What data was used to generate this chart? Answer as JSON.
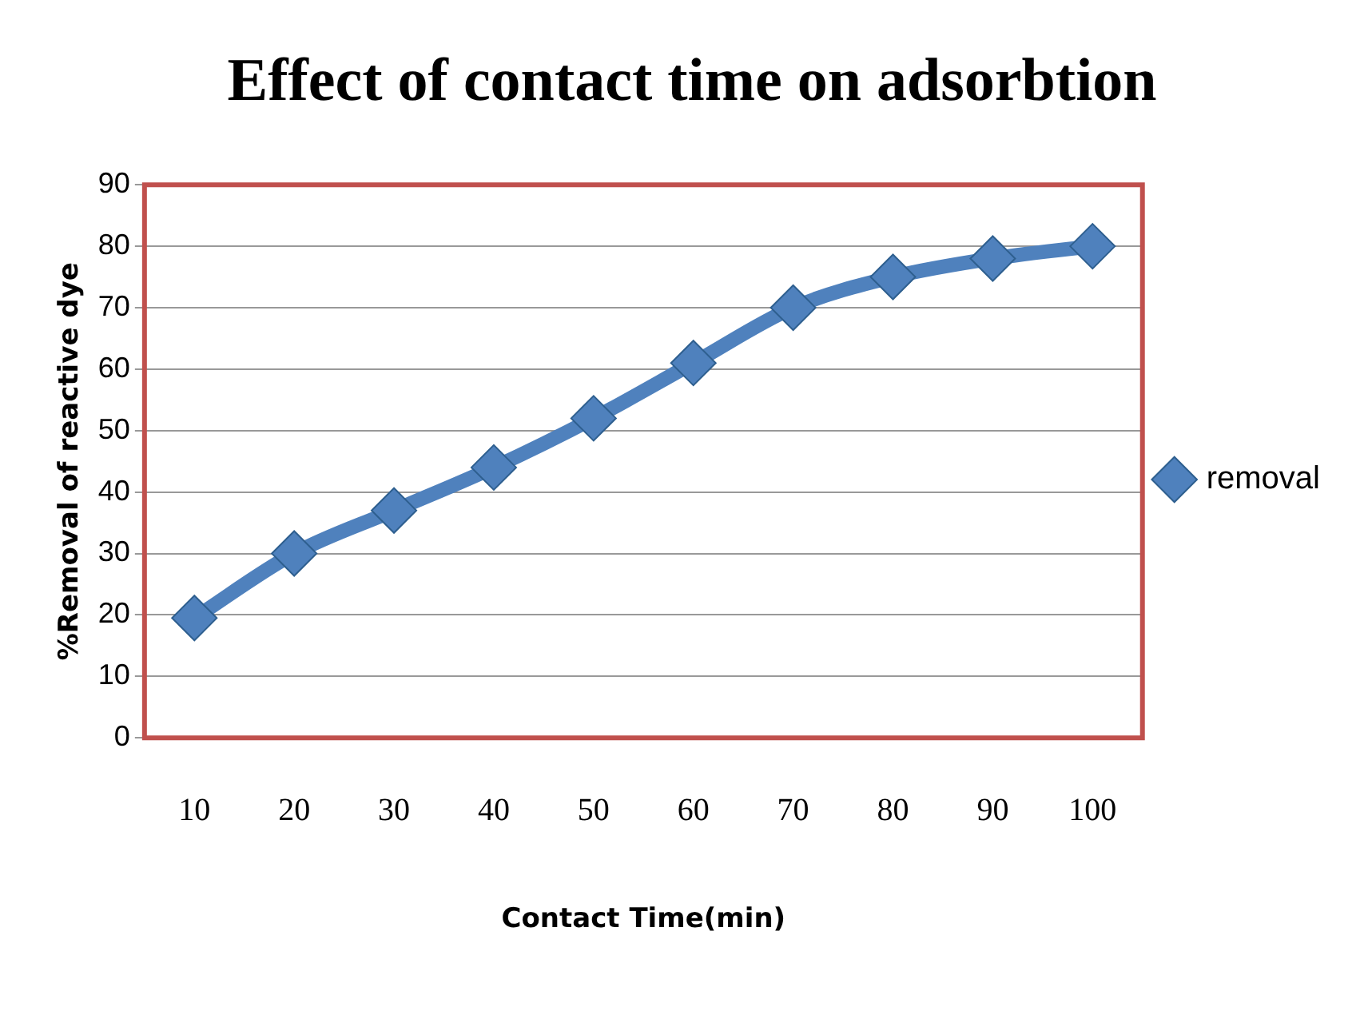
{
  "chart_data": {
    "type": "line",
    "title": "Effect of contact time on adsorbtion",
    "xlabel": "Contact Time(min)",
    "ylabel": "%Removal of reactive dye",
    "categories": [
      "10",
      "20",
      "30",
      "40",
      "50",
      "60",
      "70",
      "80",
      "90",
      "100"
    ],
    "series": [
      {
        "name": "removal",
        "color": "#4f81bd",
        "values": [
          19.5,
          30,
          37,
          44,
          52,
          61,
          70,
          75,
          78,
          80
        ]
      }
    ],
    "ylim": [
      0,
      90
    ],
    "yticks": [
      0,
      10,
      20,
      30,
      40,
      50,
      60,
      70,
      80,
      90
    ],
    "grid": "y",
    "legend": "right",
    "marker": "diamond",
    "line_style": "solid"
  }
}
